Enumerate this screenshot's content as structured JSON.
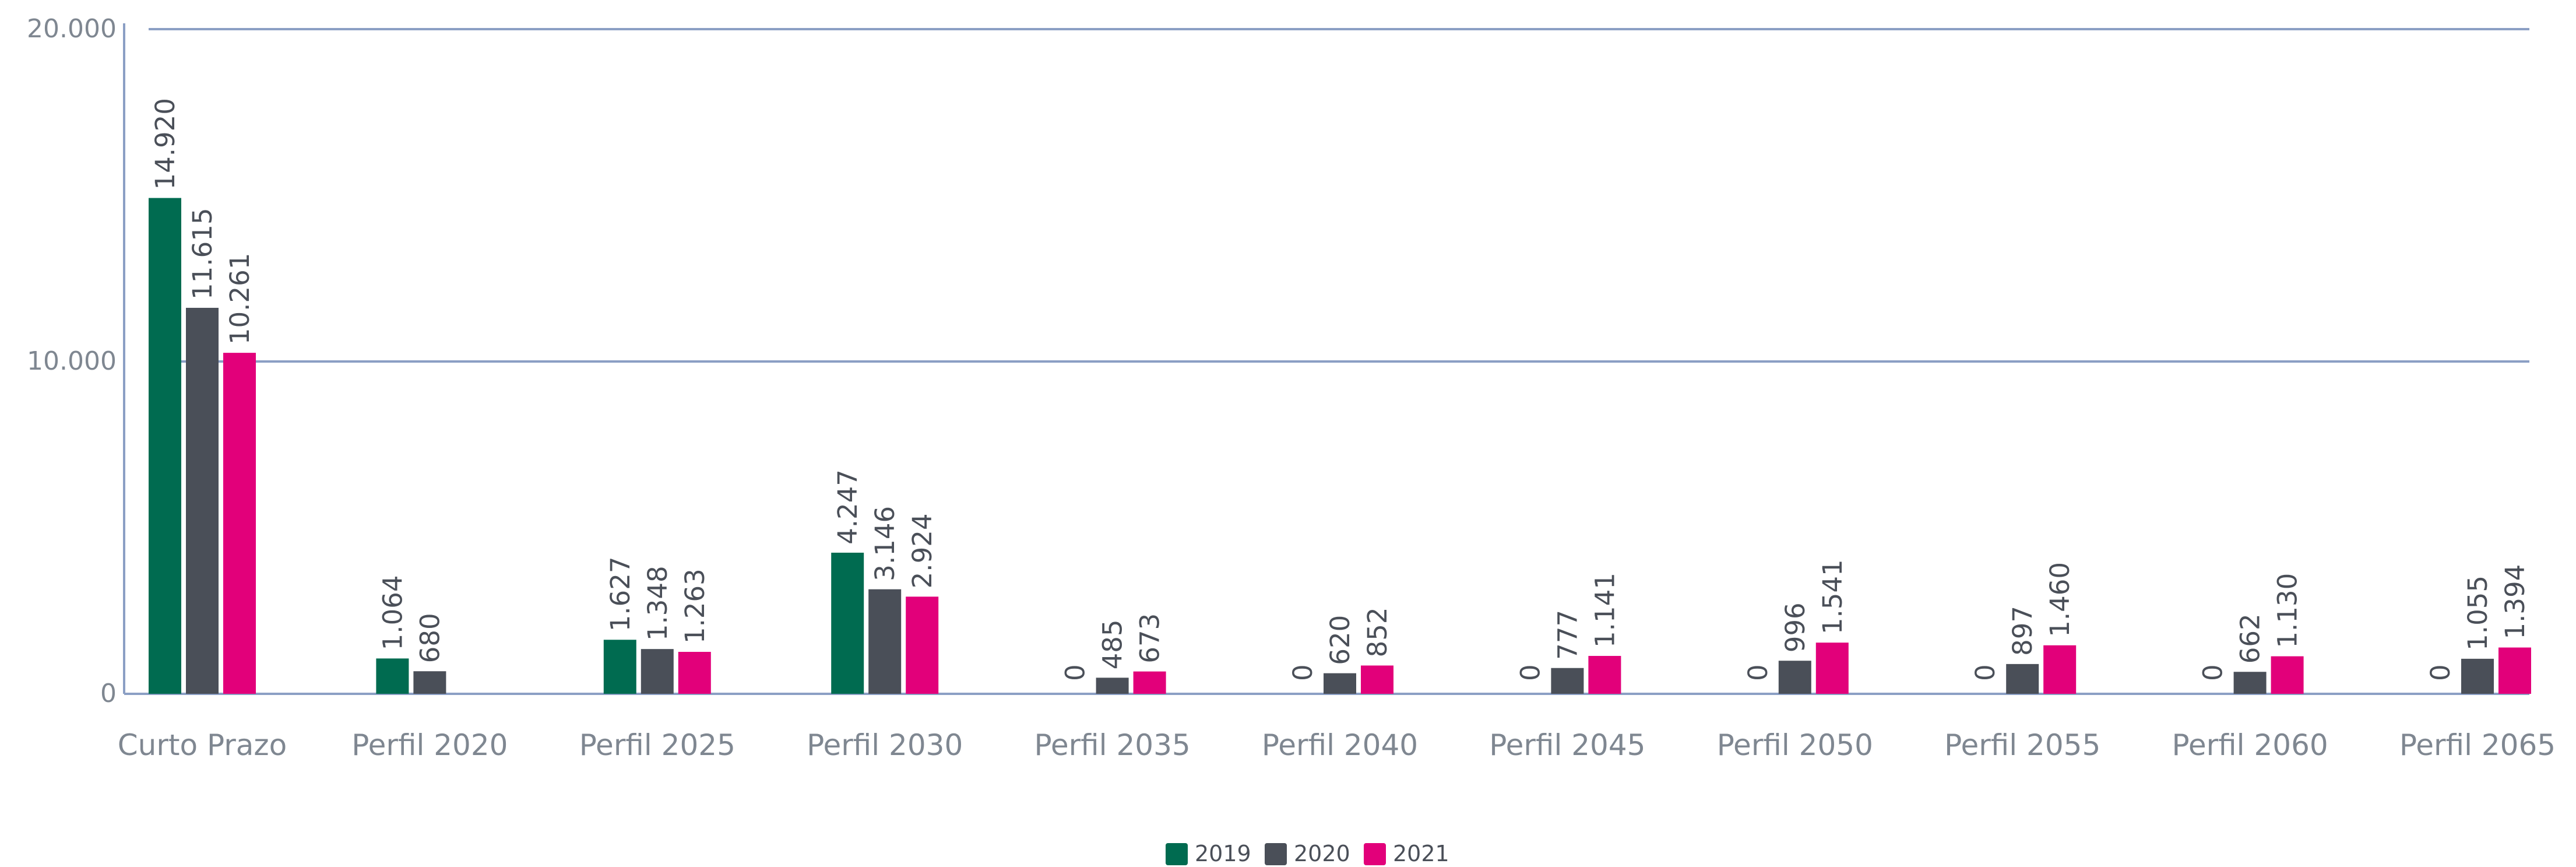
{
  "chart_data": {
    "type": "bar",
    "categories": [
      "Curto Prazo",
      "Perfil 2020",
      "Perfil 2025",
      "Perfil 2030",
      "Perfil 2035",
      "Perfil 2040",
      "Perfil 2045",
      "Perfil 2050",
      "Perfil 2055",
      "Perfil 2060",
      "Perfil 2065"
    ],
    "series": [
      {
        "name": "2019",
        "color": "#006b50",
        "values": [
          14920,
          1064,
          1627,
          4247,
          0,
          0,
          0,
          0,
          0,
          0,
          0
        ],
        "labels": [
          "14.920",
          "1.064",
          "1.627",
          "4.247",
          "0",
          "0",
          "0",
          "0",
          "0",
          "0",
          "0"
        ]
      },
      {
        "name": "2020",
        "color": "#4a4f58",
        "values": [
          11615,
          680,
          1348,
          3146,
          485,
          620,
          777,
          996,
          897,
          662,
          1055
        ],
        "labels": [
          "11.615",
          "680",
          "1.348",
          "3.146",
          "485",
          "620",
          "777",
          "996",
          "897",
          "662",
          "1.055"
        ]
      },
      {
        "name": "2021",
        "color": "#e2007a",
        "values": [
          10261,
          null,
          1263,
          2924,
          673,
          852,
          1141,
          1541,
          1460,
          1130,
          1394
        ],
        "labels": [
          "10.261",
          "",
          "1.263",
          "2.924",
          "673",
          "852",
          "1.141",
          "1.541",
          "1.460",
          "1.130",
          "1.394"
        ]
      }
    ],
    "ylim": [
      0,
      20000
    ],
    "yticks": [
      {
        "value": 0,
        "label": "0"
      },
      {
        "value": 10000,
        "label": "10.000"
      },
      {
        "value": 20000,
        "label": "20.000"
      }
    ],
    "grid": true,
    "legend_position": "bottom-center",
    "title": "",
    "xlabel": "",
    "ylabel": ""
  }
}
